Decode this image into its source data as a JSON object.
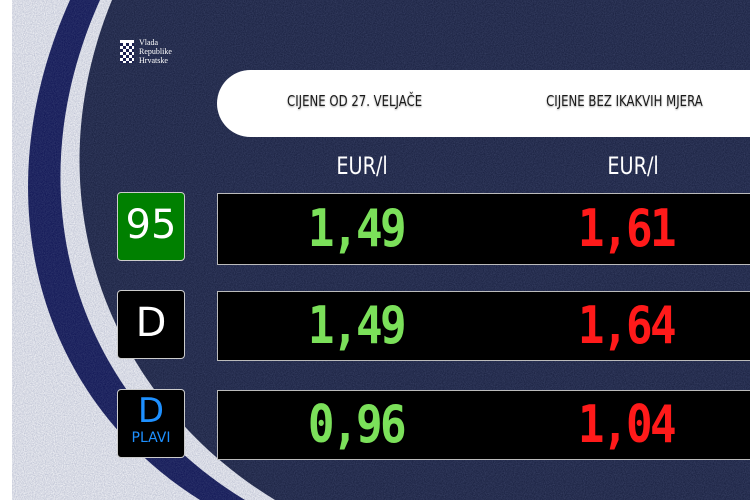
{
  "logo": {
    "lines": [
      "Vlada",
      "Republike",
      "Hrvatske"
    ]
  },
  "header": {
    "col1": "CIJENE OD 27. VELJAČE",
    "col2": "CIJENE BEZ IKAKVIH MJERA"
  },
  "units": {
    "col1": "EUR/l",
    "col2": "EUR/l"
  },
  "fuels": [
    {
      "label": "95",
      "sublabel": "",
      "current": "1,49",
      "without": "1,61",
      "color": "#008000"
    },
    {
      "label": "D",
      "sublabel": "",
      "current": "1,49",
      "without": "1,64",
      "color": "#000000"
    },
    {
      "label": "D",
      "sublabel": "PLAVI",
      "current": "0,96",
      "without": "1,04",
      "color": "#000000"
    }
  ],
  "colors": {
    "navy": "#0a0f50",
    "background": "#141b3a",
    "green": "#7be05a",
    "red": "#ff1a1a",
    "blue_diesel": "#1e90ff"
  }
}
